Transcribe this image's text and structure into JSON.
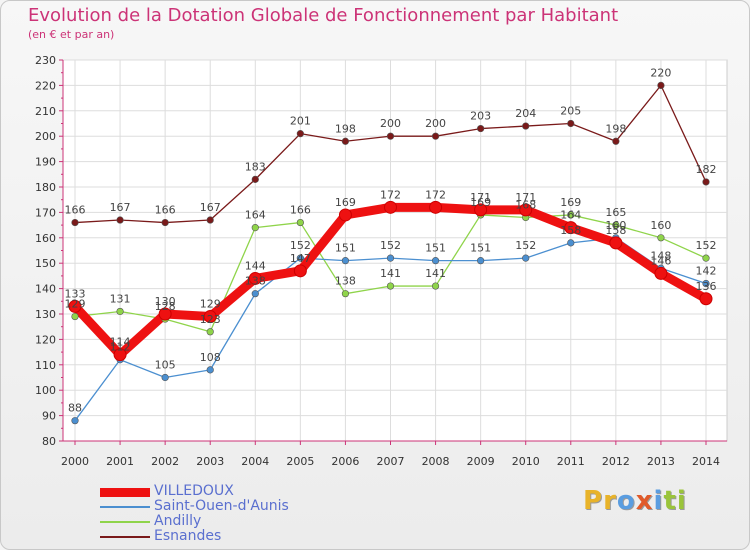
{
  "header": {
    "title": "Evolution de la Dotation Globale de Fonctionnement par Habitant",
    "subtitle": "(en € et par an)"
  },
  "logo": {
    "text": "Proxiti",
    "colors": [
      "#e8b32a",
      "#e8b32a",
      "#5a9de0",
      "#e05a2a",
      "#5a9de0",
      "#9ac43a",
      "#9ac43a"
    ]
  },
  "chart_data": {
    "type": "line",
    "title": "Evolution de la Dotation Globale de Fonctionnement par Habitant",
    "subtitle": "(en € et par an)",
    "xlabel": "",
    "ylabel": "",
    "ylim": [
      80,
      230
    ],
    "yticks": [
      80,
      90,
      100,
      110,
      120,
      130,
      140,
      150,
      160,
      170,
      180,
      190,
      200,
      210,
      220,
      230
    ],
    "grid": true,
    "legend_position": "bottom-left",
    "categories": [
      "2000",
      "2001",
      "2002",
      "2003",
      "2004",
      "2005",
      "2006",
      "2007",
      "2008",
      "2009",
      "2010",
      "2011",
      "2012",
      "2013",
      "2014"
    ],
    "series": [
      {
        "name": "Esnandes",
        "color": "#7a1a1a",
        "values": [
          166,
          167,
          166,
          167,
          183,
          201,
          198,
          200,
          200,
          203,
          204,
          205,
          198,
          220,
          182
        ]
      },
      {
        "name": "Andilly",
        "color": "#8fd44a",
        "values": [
          129,
          131,
          128,
          123,
          164,
          166,
          138,
          141,
          141,
          169,
          168,
          169,
          165,
          160,
          152
        ]
      },
      {
        "name": "Saint-Ouen-d'Aunis",
        "color": "#4b8fd0",
        "values": [
          88,
          112,
          105,
          108,
          138,
          152,
          151,
          152,
          151,
          151,
          152,
          158,
          160,
          148,
          142
        ]
      },
      {
        "name": "VILLEDOUX",
        "color": "#ee1111",
        "values": [
          133,
          114,
          130,
          129,
          144,
          147,
          169,
          172,
          172,
          171,
          171,
          164,
          158,
          146,
          136
        ]
      }
    ],
    "legend": [
      "VILLEDOUX",
      "Saint-Ouen-d'Aunis",
      "Andilly",
      "Esnandes"
    ]
  }
}
